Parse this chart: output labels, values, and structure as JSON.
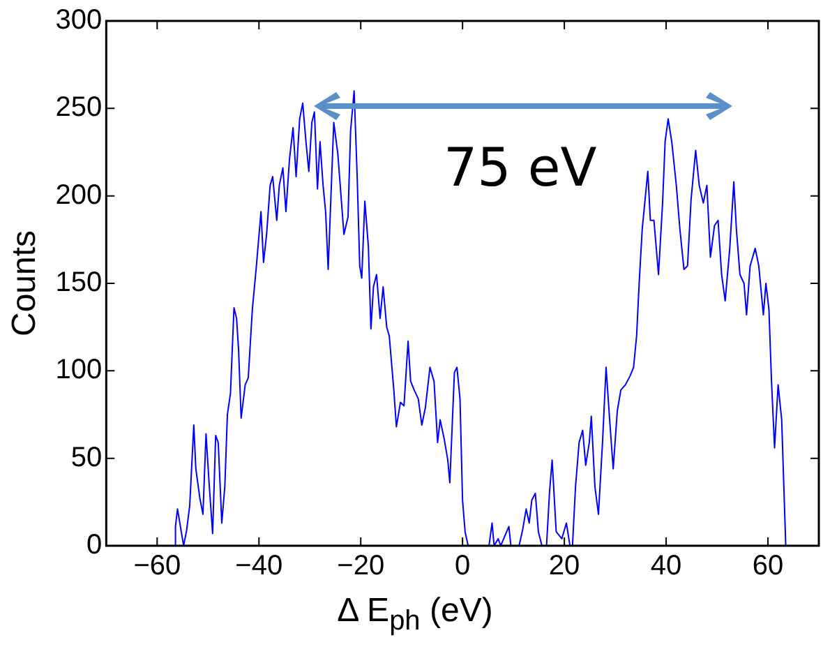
{
  "chart_data": {
    "type": "line",
    "xlabel": "Δ E$_{ph}$  (eV)",
    "ylabel": "Counts",
    "xlim": [
      -70,
      70
    ],
    "xticks": [
      -60,
      -40,
      -20,
      0,
      20,
      40,
      60
    ],
    "ylim": [
      0,
      300
    ],
    "yticks": [
      0,
      50,
      100,
      150,
      200,
      250,
      300
    ],
    "grid": false,
    "legend": false,
    "marker": "none",
    "line_style": "solid",
    "annotations": [
      "75 eV"
    ],
    "series": [
      {
        "color": "#0000ff",
        "x": [
          -56.6,
          -56.4,
          -56,
          -54.8,
          -54.2,
          -53.6,
          -52.8,
          -52.4,
          -51.6,
          -51,
          -50.4,
          -49.8,
          -49.1,
          -48.5,
          -48,
          -47.3,
          -46.7,
          -46.2,
          -45.6,
          -44.9,
          -44.4,
          -44,
          -43.5,
          -42.7,
          -42.1,
          -41.3,
          -40.5,
          -39.6,
          -39.1,
          -38.5,
          -37.8,
          -37.3,
          -36.5,
          -36,
          -35.3,
          -34.7,
          -34,
          -33.3,
          -32.7,
          -32,
          -31.4,
          -30.7,
          -30.2,
          -29.6,
          -29.1,
          -28.5,
          -28,
          -27.4,
          -26.9,
          -26.4,
          -25.8,
          -25.3,
          -24.5,
          -23.8,
          -23.3,
          -22.5,
          -22,
          -21.3,
          -20.7,
          -20.2,
          -19.8,
          -19.2,
          -18.5,
          -18,
          -17.5,
          -16.9,
          -16.2,
          -15.6,
          -14.9,
          -14.4,
          -13.5,
          -13,
          -12.2,
          -11.5,
          -10.7,
          -10.2,
          -9.5,
          -8.7,
          -8,
          -7.3,
          -6.4,
          -5.6,
          -4.9,
          -4.4,
          -3.6,
          -2.9,
          -2.5,
          -1.6,
          -1.1,
          -0.5,
          0,
          0.5,
          1.1,
          5.2,
          5.8,
          6.2,
          7,
          7.5,
          9.1,
          9.5,
          11.1,
          11.8,
          12.5,
          13.1,
          13.6,
          14.3,
          14.9,
          15.6,
          16.5,
          17.1,
          17.6,
          18.4,
          19.5,
          20.4,
          21.1,
          21.6,
          22.2,
          22.9,
          23.6,
          24.2,
          24.9,
          25.3,
          26,
          26.7,
          27.5,
          28.2,
          28.9,
          29.6,
          30.4,
          31.1,
          32,
          32.9,
          33.6,
          34.2,
          34.7,
          35.3,
          35.8,
          36.4,
          36.9,
          37.6,
          38.5,
          39.3,
          39.8,
          40.4,
          41.1,
          42,
          42.7,
          43.5,
          44.2,
          44.9,
          45.8,
          46.5,
          47.3,
          48,
          48.7,
          49.5,
          50.2,
          50.9,
          51.6,
          52.5,
          53.3,
          53.8,
          54.5,
          55.3,
          55.8,
          56.5,
          57.5,
          58.2,
          59.1,
          59.6,
          60.2,
          60.7,
          61.3,
          62,
          62.7,
          63.5
        ],
        "values": [
          0,
          11,
          21,
          0,
          9,
          23,
          69,
          44,
          27,
          18,
          64,
          36,
          7,
          63,
          59,
          13,
          34,
          75,
          87,
          136,
          130,
          112,
          73,
          92,
          96,
          135,
          160,
          191,
          162,
          178,
          206,
          211,
          186,
          206,
          216,
          191,
          221,
          239,
          211,
          244,
          253,
          229,
          214,
          242,
          248,
          204,
          231,
          206,
          191,
          158,
          204,
          242,
          224,
          197,
          178,
          188,
          237,
          260,
          211,
          160,
          153,
          197,
          171,
          124,
          148,
          155,
          130,
          148,
          125,
          120,
          89,
          68,
          82,
          80,
          117,
          94,
          89,
          84,
          69,
          79,
          102,
          94,
          59,
          72,
          61,
          49,
          36,
          99,
          102,
          84,
          26,
          8,
          0,
          0,
          13,
          0,
          4,
          0,
          11,
          0,
          0,
          9,
          21,
          13,
          26,
          30,
          8,
          0,
          0,
          31,
          49,
          8,
          4,
          13,
          0,
          0,
          34,
          59,
          66,
          46,
          59,
          74,
          34,
          18,
          59,
          102,
          72,
          44,
          77,
          89,
          92,
          97,
          102,
          120,
          150,
          181,
          196,
          214,
          186,
          186,
          155,
          196,
          231,
          244,
          231,
          206,
          181,
          158,
          160,
          198,
          226,
          206,
          196,
          206,
          165,
          183,
          186,
          155,
          140,
          170,
          208,
          181,
          155,
          150,
          132,
          160,
          170,
          160,
          132,
          150,
          135,
          94,
          56,
          92,
          72,
          0
        ]
      }
    ]
  }
}
